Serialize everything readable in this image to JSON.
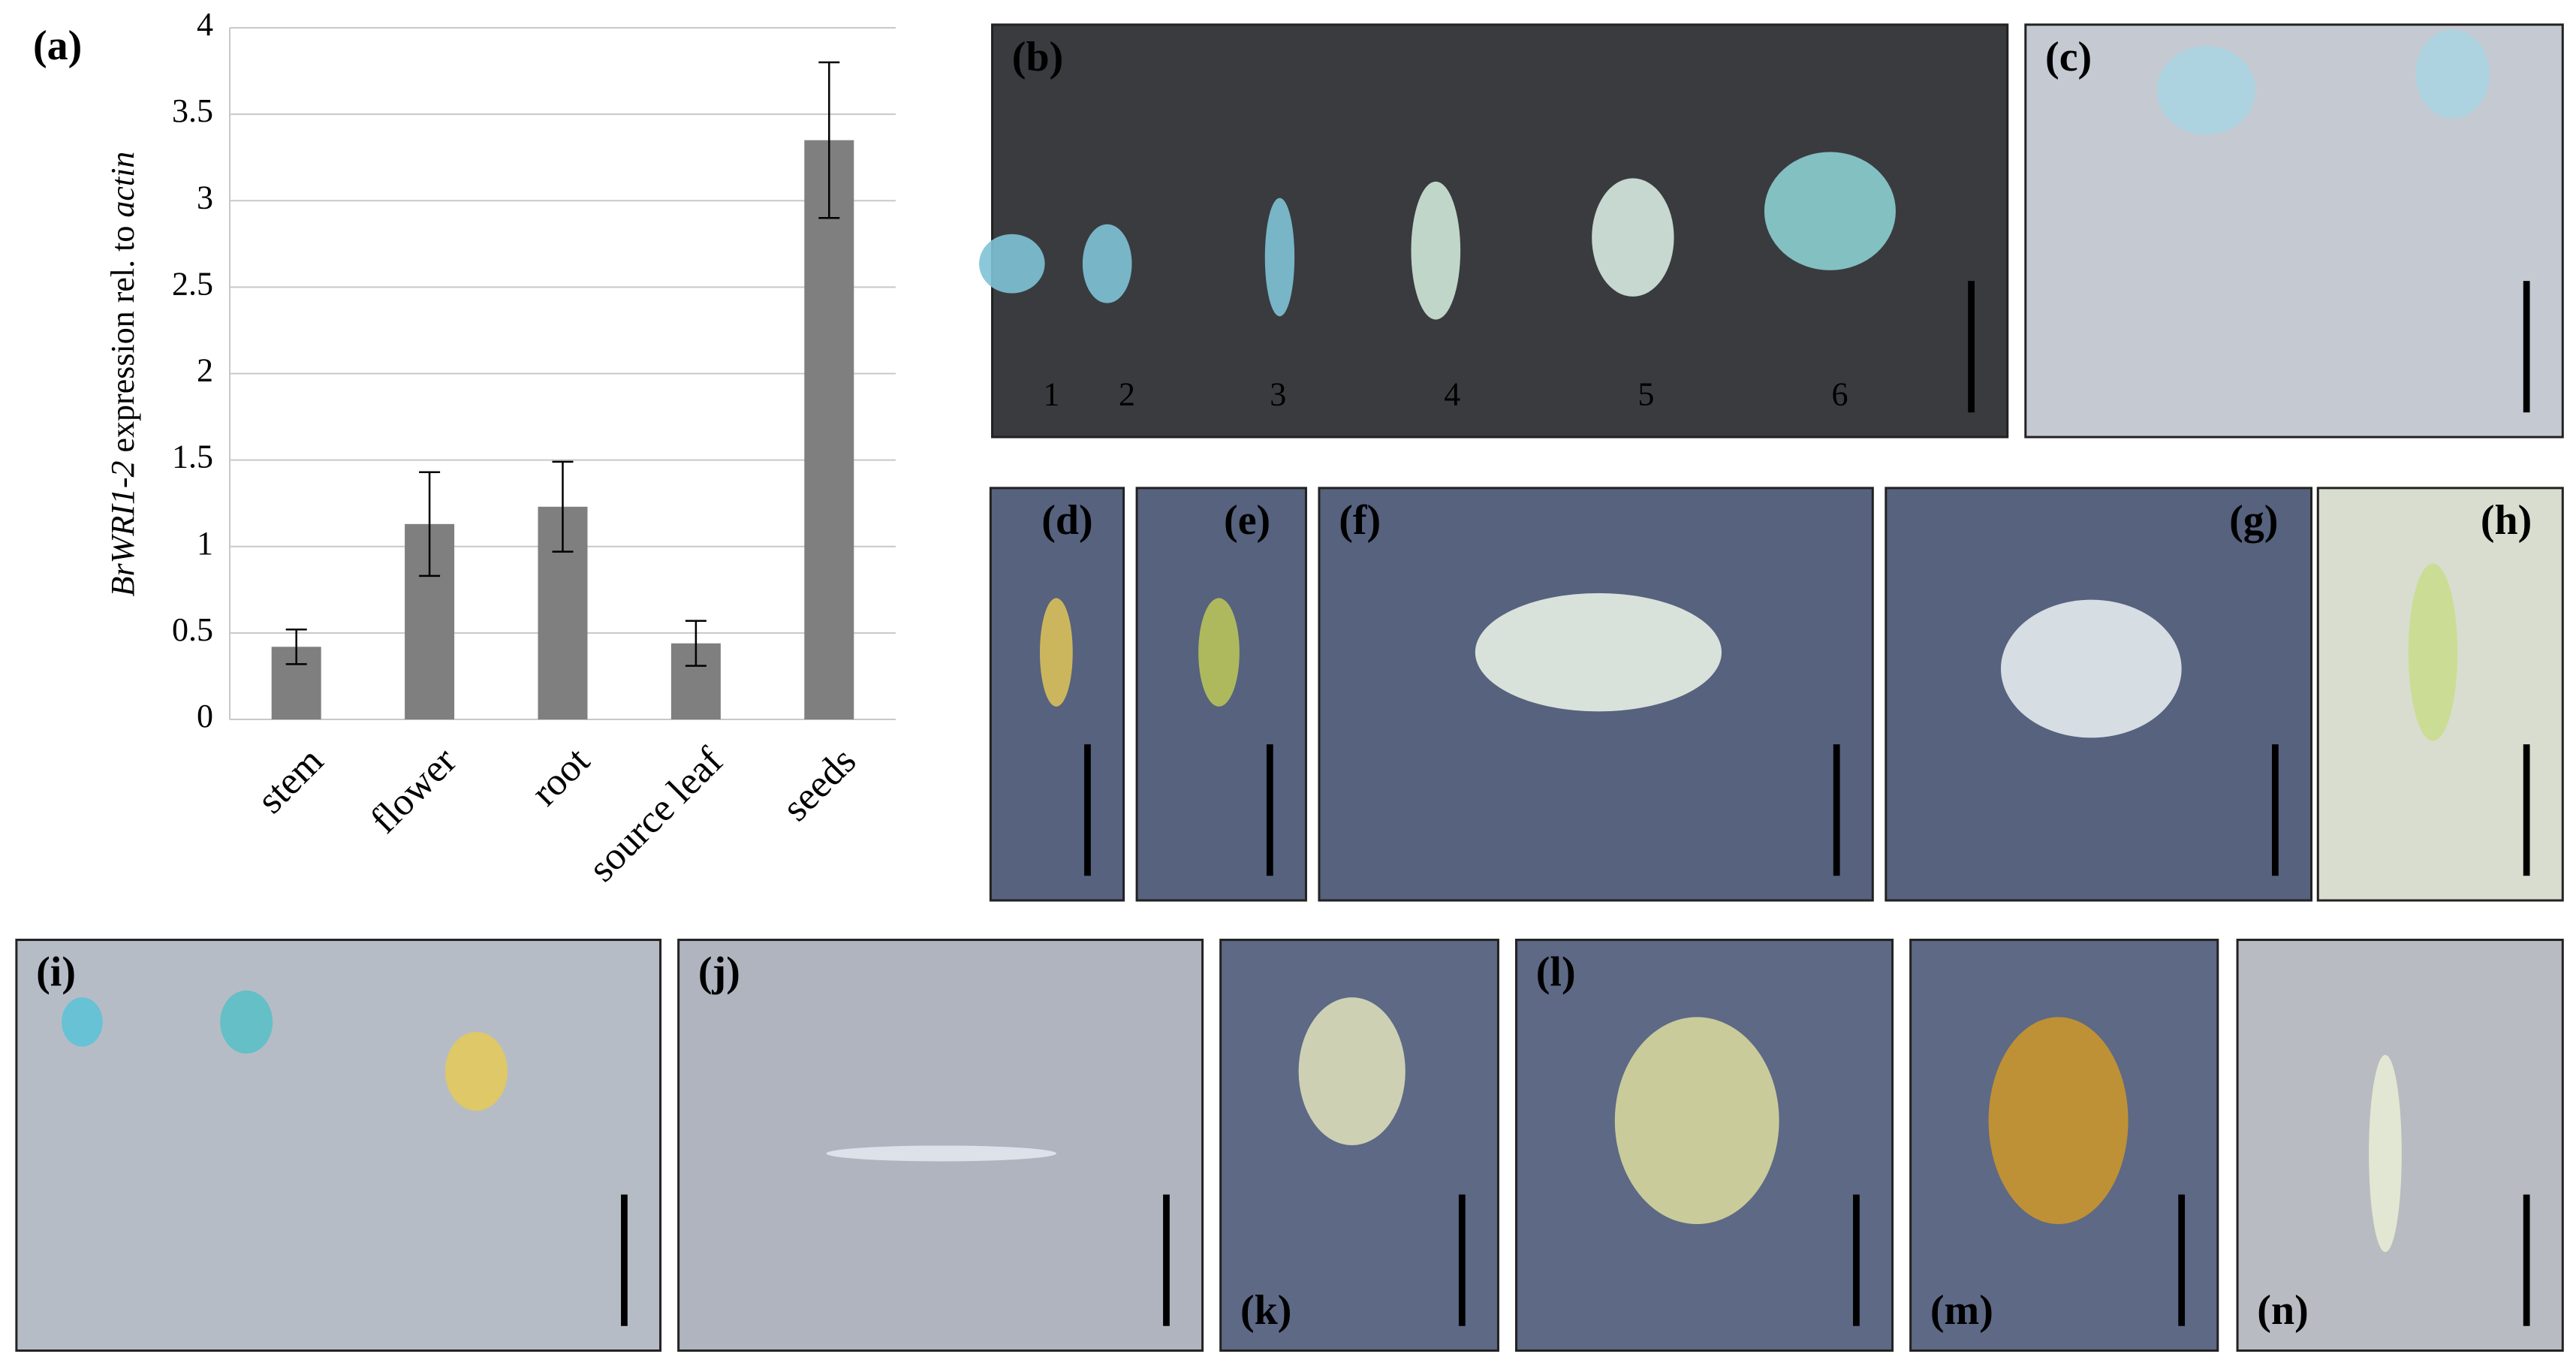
{
  "chart_data": {
    "type": "bar",
    "panel_label": "(a)",
    "ylabel": {
      "gene": "BrWRI1-2",
      "middle": "expression rel. to",
      "reference": "actin"
    },
    "categories": [
      "stem",
      "flower",
      "root",
      "source leaf",
      "seeds"
    ],
    "values": [
      0.42,
      1.13,
      1.23,
      0.44,
      3.35
    ],
    "errors": [
      0.1,
      0.3,
      0.26,
      0.13,
      0.45
    ],
    "color": "#7f7f7f",
    "ylim": [
      0,
      4
    ],
    "yticks": [
      0,
      0.5,
      1,
      1.5,
      2,
      2.5,
      3,
      3.5,
      4
    ],
    "grid": true
  },
  "panels": [
    {
      "label": "(b)",
      "numbers": [
        "1",
        "2",
        "3",
        "4",
        "5",
        "6"
      ]
    },
    {
      "label": "(c)"
    },
    {
      "label": "(d)"
    },
    {
      "label": "(e)"
    },
    {
      "label": "(f)"
    },
    {
      "label": "(g)"
    },
    {
      "label": "(h)"
    },
    {
      "label": "(i)"
    },
    {
      "label": "(j)"
    },
    {
      "label": "(k)"
    },
    {
      "label": "(l)"
    },
    {
      "label": "(m)"
    },
    {
      "label": "(n)"
    }
  ]
}
